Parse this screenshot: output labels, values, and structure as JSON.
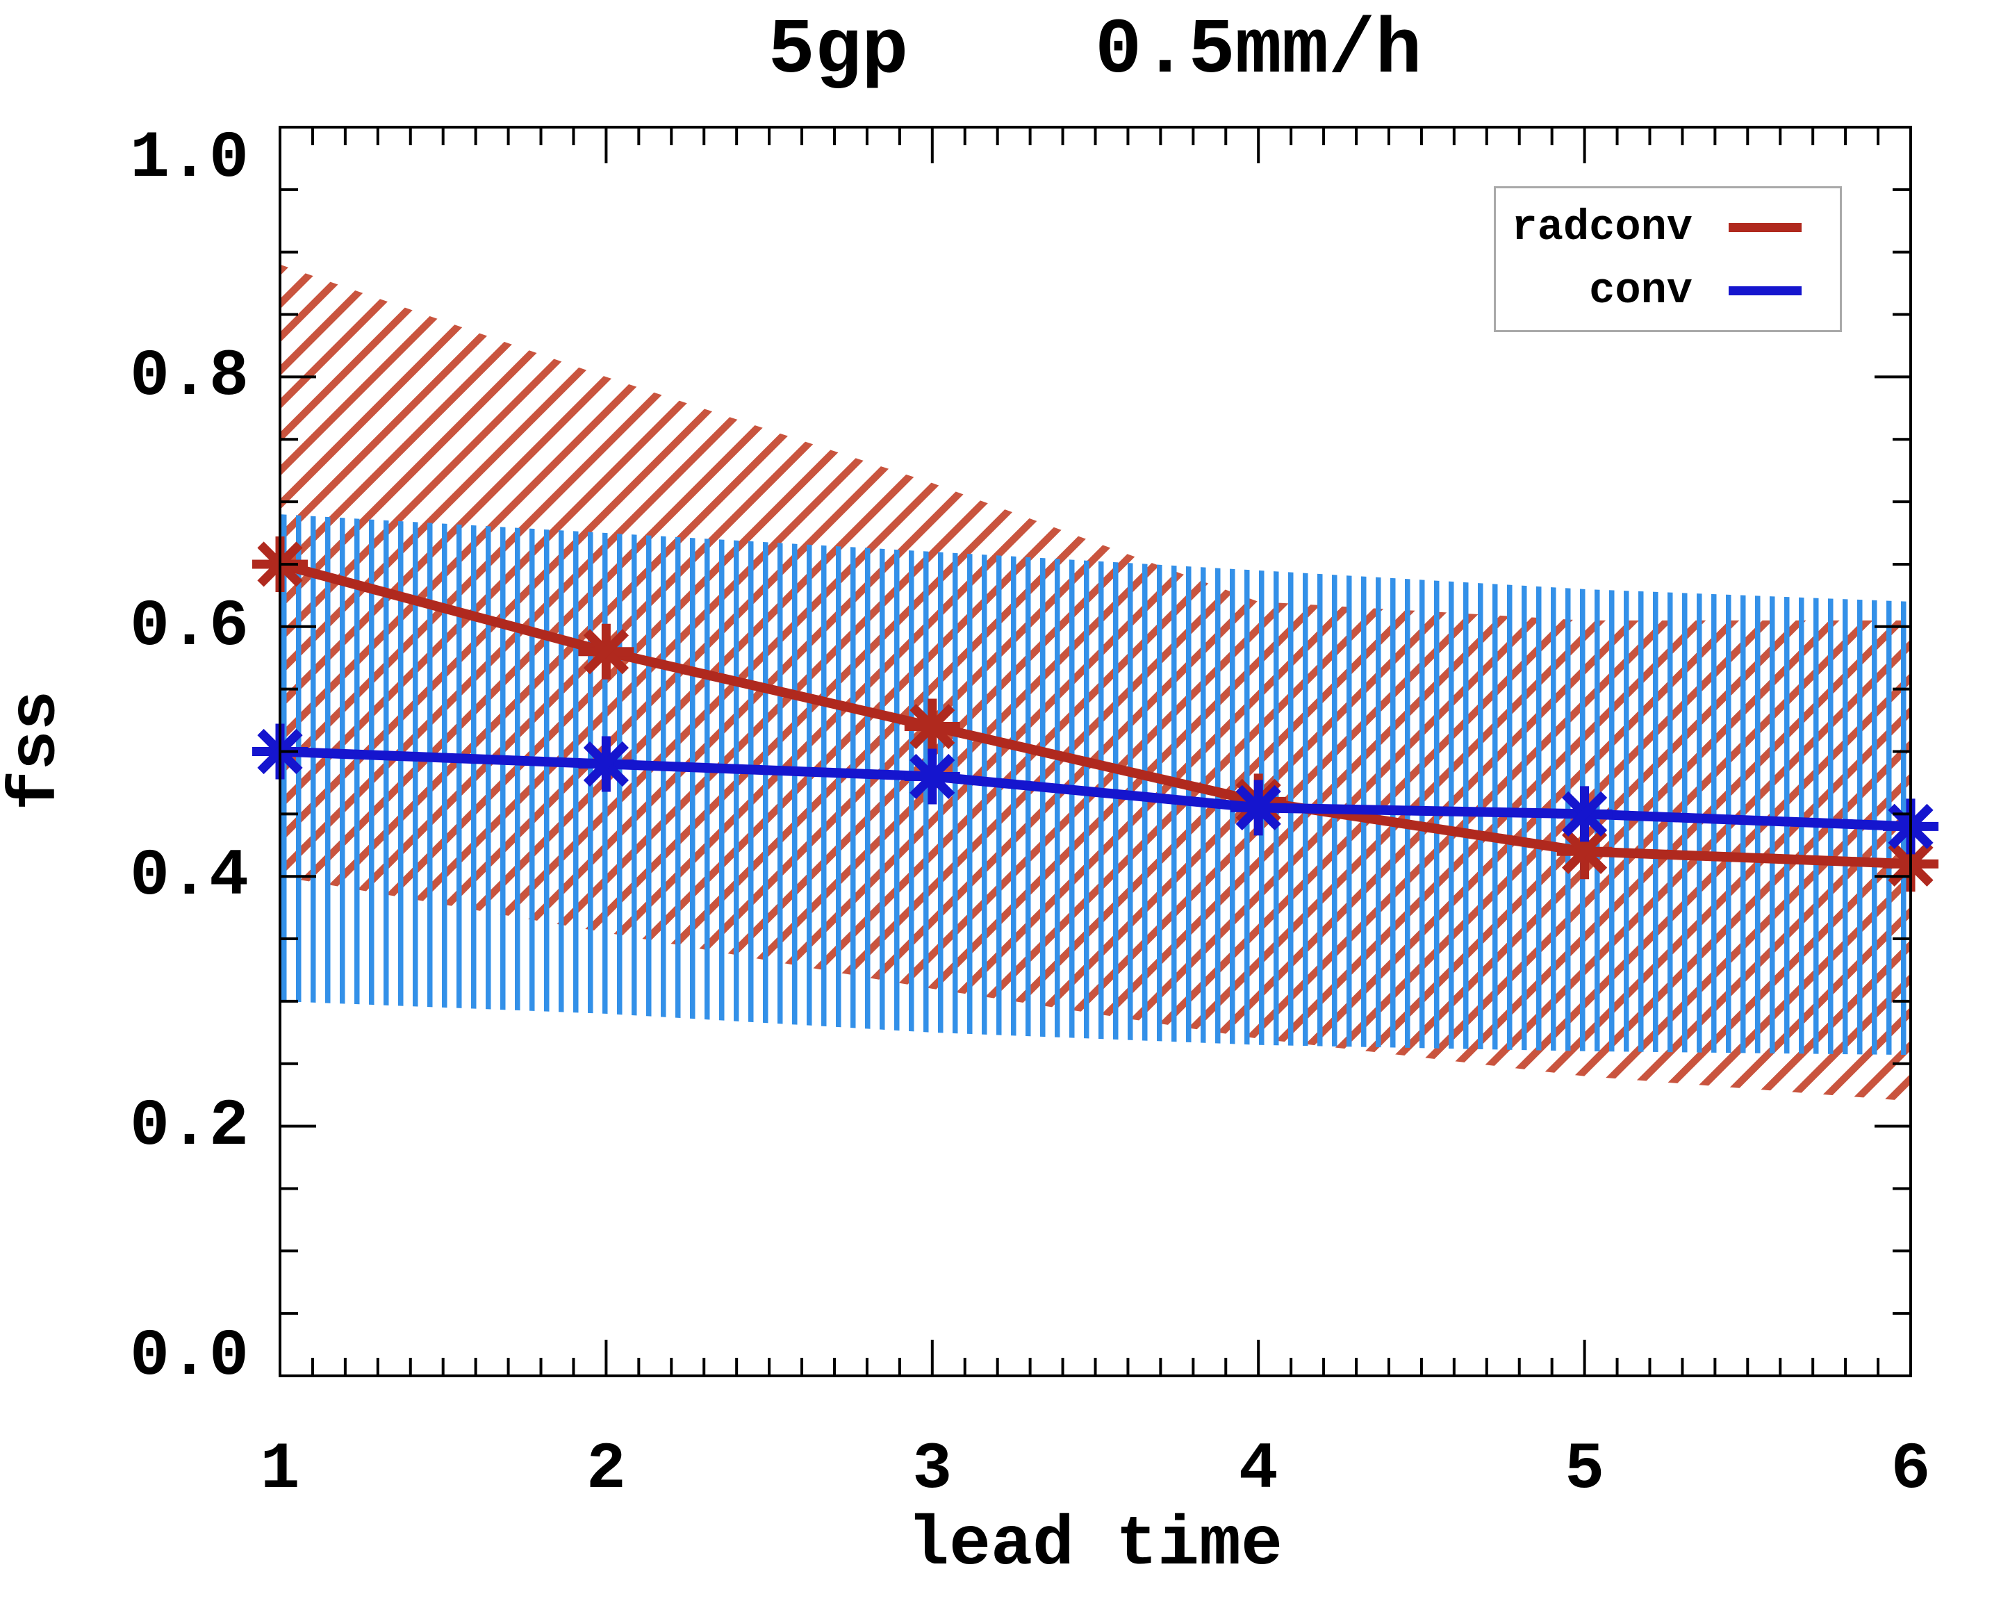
{
  "title": "5gp    0.5mm/h",
  "chart_data": {
    "type": "line",
    "title": "5gp    0.5mm/h",
    "xlabel": "lead time",
    "ylabel": "fss",
    "x": [
      1,
      2,
      3,
      4,
      5,
      6
    ],
    "xlim": [
      1,
      6
    ],
    "ylim": [
      0.0,
      1.0
    ],
    "x_tick_values": [
      1,
      2,
      3,
      4,
      5,
      6
    ],
    "x_tick_labels": [
      "1",
      "2",
      "3",
      "4",
      "5",
      "6"
    ],
    "x_minor_step": 0.1,
    "y_tick_values": [
      0.0,
      0.2,
      0.4,
      0.6,
      0.8,
      1.0
    ],
    "y_tick_labels": [
      "0.0",
      "0.2",
      "0.4",
      "0.6",
      "0.8",
      "1.0"
    ],
    "y_major_step": 0.2,
    "y_minor_step": 0.05,
    "grid": false,
    "legend_position": "top-right",
    "series": [
      {
        "name": "radconv",
        "color": "#B0291E",
        "hatch_color": "#C9543E",
        "hatch": "diagonal",
        "marker": "asterisk",
        "values": [
          0.65,
          0.58,
          0.52,
          0.46,
          0.42,
          0.41
        ],
        "band_upper": [
          0.89,
          0.8,
          0.715,
          0.62,
          0.605,
          0.605
        ],
        "band_lower": [
          0.4,
          0.355,
          0.31,
          0.27,
          0.24,
          0.22
        ]
      },
      {
        "name": "conv",
        "color": "#1515CE",
        "hatch_color": "#3390E8",
        "hatch": "vertical",
        "marker": "asterisk",
        "values": [
          0.5,
          0.49,
          0.48,
          0.455,
          0.45,
          0.44
        ],
        "band_upper": [
          0.69,
          0.675,
          0.66,
          0.645,
          0.63,
          0.62
        ],
        "band_lower": [
          0.3,
          0.29,
          0.275,
          0.265,
          0.26,
          0.257
        ]
      }
    ]
  },
  "legend": {
    "items": [
      {
        "label": "radconv",
        "series": "radconv",
        "color": "#B0291E"
      },
      {
        "label": "conv",
        "series": "conv",
        "color": "#1515CE"
      }
    ]
  }
}
